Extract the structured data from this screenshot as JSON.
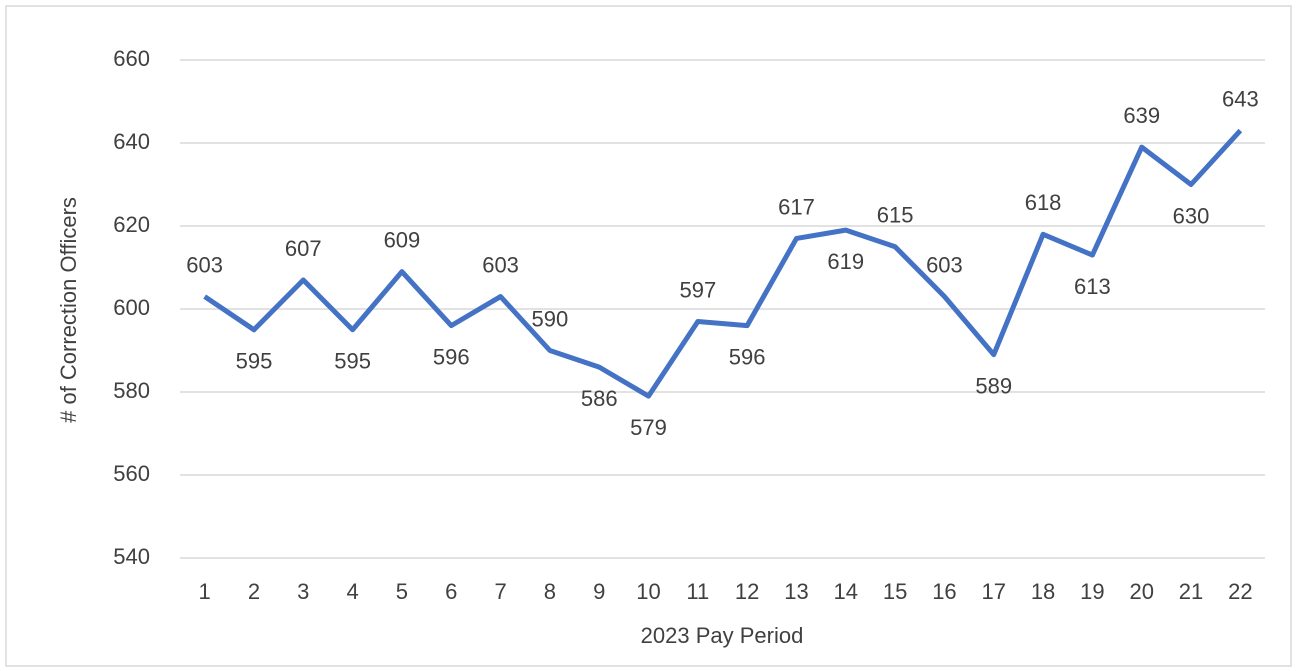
{
  "chart_data": {
    "type": "line",
    "y_label": "# of Correction Officers",
    "x_label": "2023 Pay Period",
    "categories": [
      "1",
      "2",
      "3",
      "4",
      "5",
      "6",
      "7",
      "8",
      "9",
      "10",
      "11",
      "12",
      "13",
      "14",
      "15",
      "16",
      "17",
      "18",
      "19",
      "20",
      "21",
      "22"
    ],
    "series": [
      {
        "name": "Correction Officers",
        "color": "#4472c4",
        "values": [
          603,
          595,
          607,
          595,
          609,
          596,
          603,
          590,
          586,
          579,
          597,
          596,
          617,
          619,
          615,
          603,
          589,
          618,
          613,
          639,
          630,
          643
        ]
      }
    ],
    "ylim": [
      540,
      660
    ],
    "yticks": [
      540,
      560,
      580,
      600,
      620,
      640,
      660
    ],
    "grid": true
  }
}
